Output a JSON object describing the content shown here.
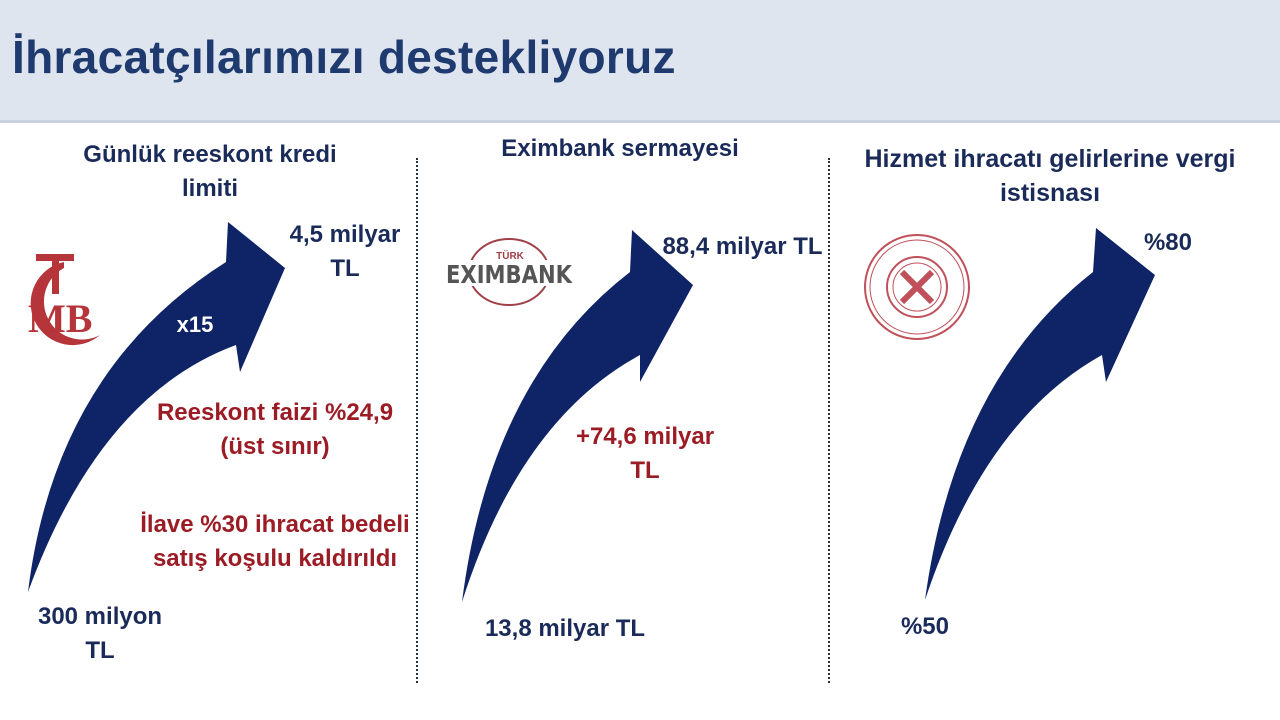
{
  "title": "İhracatçılarımızı destekliyoruz",
  "colors": {
    "arrow": "#0f2466",
    "accent_red": "#9b1c24",
    "navy_text": "#1a2b5a"
  },
  "panels": [
    {
      "heading": "Günlük reeskont kredi limiti",
      "logo": "TCMB",
      "start_label": "300 milyon TL",
      "end_label": "4,5 milyar TL",
      "arrow_label": "x15",
      "notes": [
        "Reeskont faizi %24,9 (üst sınır)",
        "İlave %30 ihracat bedeli satış koşulu kaldırıldı"
      ]
    },
    {
      "heading": "Eximbank sermayesi",
      "logo": "TÜRK EXIMBANK",
      "start_label": "13,8 milyar TL",
      "end_label": "88,4 milyar TL",
      "notes": [
        "+74,6 milyar TL"
      ]
    },
    {
      "heading": "Hizmet ihracatı gelirlerine vergi istisnası",
      "logo": "seal",
      "start_label": "%50",
      "end_label": "%80"
    }
  ]
}
